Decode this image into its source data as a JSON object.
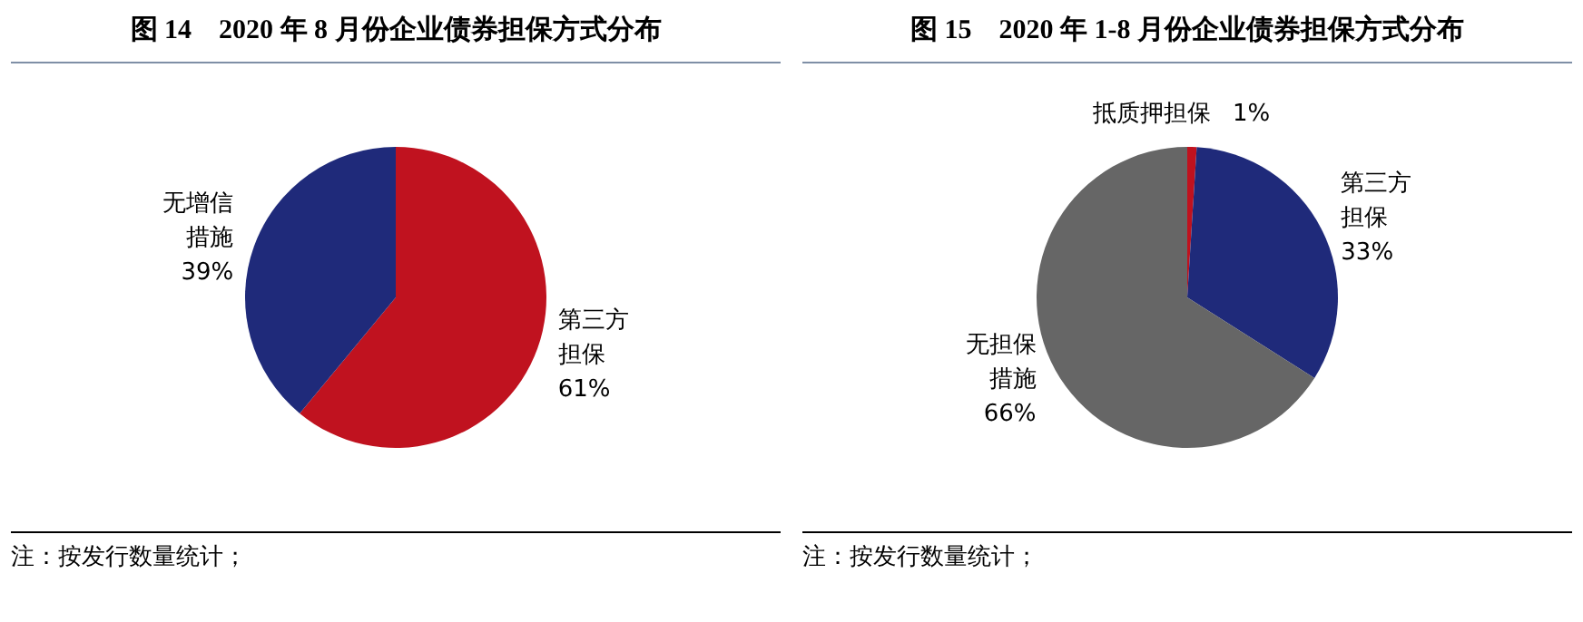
{
  "chart_data": [
    {
      "type": "pie",
      "title": "图 14　2020 年 8 月份企业债券担保方式分布",
      "categories": [
        "第三方担保",
        "无增信措施"
      ],
      "values": [
        61,
        39
      ],
      "colors": [
        "#c0121f",
        "#1f2a7a"
      ],
      "value_labels": [
        "61%",
        "39%"
      ],
      "legend": false,
      "annotations": [
        "注：按发行数量统计；"
      ]
    },
    {
      "type": "pie",
      "title": "图 15　2020 年 1-8 月份企业债券担保方式分布",
      "categories": [
        "抵质押担保",
        "第三方担保",
        "无担保措施"
      ],
      "values": [
        1,
        33,
        66
      ],
      "colors": [
        "#c0121f",
        "#1f2a7a",
        "#666666"
      ],
      "value_labels": [
        "1%",
        "33%",
        "66%"
      ],
      "legend": false,
      "annotations": [
        "注：按发行数量统计；"
      ]
    }
  ]
}
